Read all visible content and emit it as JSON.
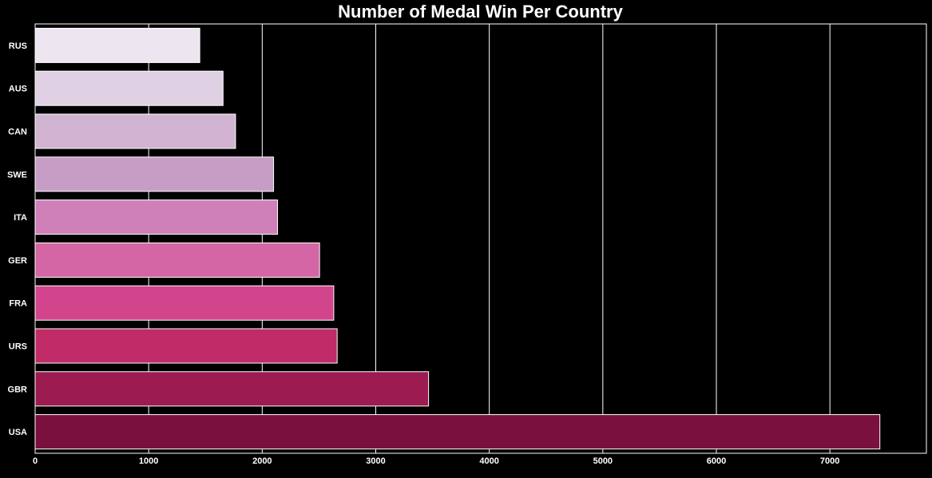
{
  "chart_data": {
    "type": "bar",
    "orientation": "horizontal",
    "title": "Number of Medal Win Per Country",
    "xlabel": "",
    "ylabel": "",
    "categories": [
      "RUS",
      "AUS",
      "CAN",
      "SWE",
      "ITA",
      "GER",
      "FRA",
      "URS",
      "GBR",
      "USA"
    ],
    "values": [
      1450,
      1655,
      1765,
      2100,
      2135,
      2505,
      2630,
      2660,
      3465,
      7440
    ],
    "xlim": [
      0,
      7850
    ],
    "xticks": [
      "0",
      "1000",
      "2000",
      "3000",
      "4000",
      "5000",
      "6000",
      "7000"
    ],
    "grid": "vertical",
    "colors": [
      "#ede5f0",
      "#dfd0e4",
      "#d0b4d1",
      "#c59dc5",
      "#cf80b8",
      "#d466a5",
      "#d2448c",
      "#c02b68",
      "#9c1b50",
      "#7a103d"
    ],
    "background": "#000000",
    "gridline_color": "#ffffff"
  }
}
